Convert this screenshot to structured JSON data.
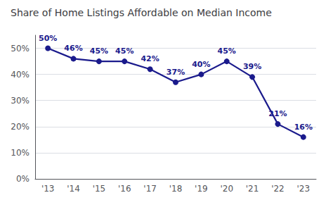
{
  "chart_data": {
    "type": "line",
    "title": "Share of Home Listings Affordable on Median Income",
    "categories": [
      "'13",
      "'14",
      "'15",
      "'16",
      "'17",
      "'18",
      "'19",
      "'20",
      "'21",
      "'22",
      "'23"
    ],
    "values": [
      50,
      46,
      45,
      45,
      42,
      37,
      40,
      45,
      39,
      21,
      16
    ],
    "value_labels": [
      "50%",
      "46%",
      "45%",
      "45%",
      "42%",
      "37%",
      "40%",
      "45%",
      "39%",
      "21%",
      "16%"
    ],
    "color": "#1a1a8c",
    "ylim": [
      0,
      55
    ],
    "yticks": [
      {
        "value": 0,
        "label": "0%"
      },
      {
        "value": 10,
        "label": "10%"
      },
      {
        "value": 20,
        "label": "20%"
      },
      {
        "value": 30,
        "label": "30%"
      },
      {
        "value": 40,
        "label": "40%"
      },
      {
        "value": 50,
        "label": "50%"
      }
    ],
    "grid": true,
    "data_labels": true
  }
}
